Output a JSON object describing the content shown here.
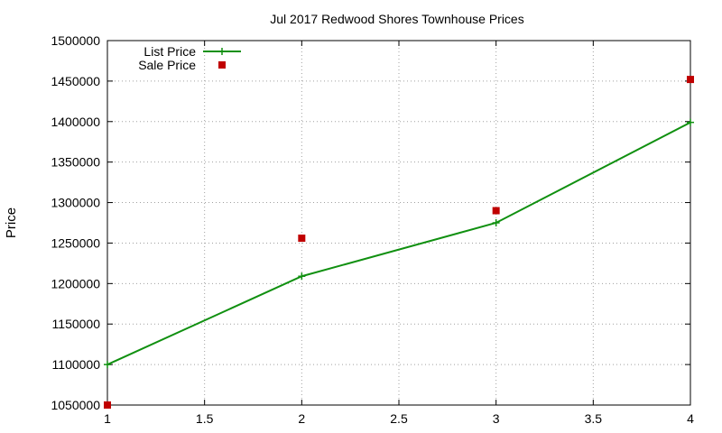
{
  "chart_data": {
    "type": "line",
    "title": "Jul 2017 Redwood Shores Townhouse Prices",
    "xlabel": "",
    "ylabel": "Price",
    "xlim": [
      1,
      4
    ],
    "ylim": [
      1050000,
      1500000
    ],
    "x_ticks": [
      "1",
      "1.5",
      "2",
      "2.5",
      "3",
      "3.5",
      "4"
    ],
    "y_ticks": [
      "1050000",
      "1100000",
      "1150000",
      "1200000",
      "1250000",
      "1300000",
      "1350000",
      "1400000",
      "1450000",
      "1500000"
    ],
    "grid": true,
    "legend_position": "top-left",
    "series": [
      {
        "name": "List Price",
        "style": "line-with-plus-markers",
        "color": "#109010",
        "points": [
          [
            1,
            1100000
          ],
          [
            2,
            1209000
          ],
          [
            3,
            1275000
          ],
          [
            4,
            1399000
          ]
        ]
      },
      {
        "name": "Sale Price",
        "style": "square-markers",
        "color": "#c00000",
        "points": [
          [
            1,
            1050000
          ],
          [
            2,
            1256000
          ],
          [
            3,
            1290000
          ],
          [
            4,
            1452000
          ]
        ]
      }
    ]
  }
}
